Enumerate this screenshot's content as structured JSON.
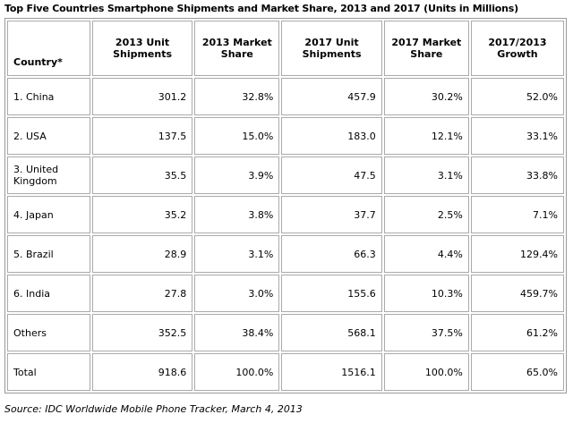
{
  "title": "Top Five Countries Smartphone Shipments and Market Share, 2013 and 2017 (Units in Millions)",
  "table": {
    "header": [
      "Country*",
      "2013 Unit Shipments",
      "2013 Market Share",
      "2017 Unit Shipments",
      "2017 Market Share",
      "2017/2013 Growth"
    ],
    "rows": [
      [
        "1. China",
        "301.2",
        "32.8%",
        "457.9",
        "30.2%",
        "52.0%"
      ],
      [
        "2. USA",
        "137.5",
        "15.0%",
        "183.0",
        "12.1%",
        "33.1%"
      ],
      [
        "3. United Kingdom",
        "35.5",
        "3.9%",
        "47.5",
        "3.1%",
        "33.8%"
      ],
      [
        "4. Japan",
        "35.2",
        "3.8%",
        "37.7",
        "2.5%",
        "7.1%"
      ],
      [
        "5. Brazil",
        "28.9",
        "3.1%",
        "66.3",
        "4.4%",
        "129.4%"
      ],
      [
        "6. India",
        "27.8",
        "3.0%",
        "155.6",
        "10.3%",
        "459.7%"
      ],
      [
        "Others",
        "352.5",
        "38.4%",
        "568.1",
        "37.5%",
        "61.2%"
      ],
      [
        "Total",
        "918.6",
        "100.0%",
        "1516.1",
        "100.0%",
        "65.0%"
      ]
    ]
  },
  "source": "Source: IDC Worldwide Mobile Phone Tracker, March 4, 2013"
}
